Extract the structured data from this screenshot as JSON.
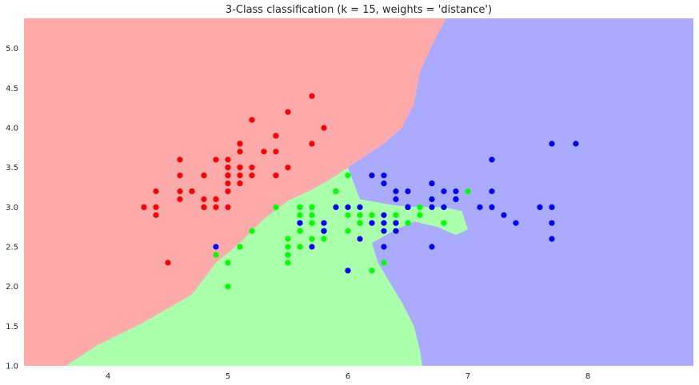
{
  "chart_data": {
    "type": "scatter",
    "title": "3-Class classification (k = 15, weights = 'distance')",
    "xlabel": "",
    "ylabel": "",
    "xlim": [
      3.3,
      8.88
    ],
    "ylim": [
      1.0,
      5.38
    ],
    "x_ticks": [
      "4",
      "5",
      "6",
      "7",
      "8"
    ],
    "y_ticks": [
      "1.0",
      "1.5",
      "2.0",
      "2.5",
      "3.0",
      "3.5",
      "4.0",
      "4.5",
      "5.0"
    ],
    "grid": false,
    "legend": "none",
    "region_colors": {
      "red": "#FFAAAA",
      "green": "#AAFFAA",
      "blue": "#AAAAFF"
    },
    "region_boundaries": {
      "red_green": [
        [
          3.65,
          1.0
        ],
        [
          3.9,
          1.25
        ],
        [
          4.3,
          1.55
        ],
        [
          4.7,
          1.9
        ],
        [
          4.9,
          2.3
        ],
        [
          5.1,
          2.55
        ],
        [
          5.3,
          2.85
        ],
        [
          5.5,
          3.08
        ],
        [
          5.7,
          3.22
        ],
        [
          5.85,
          3.35
        ],
        [
          6.0,
          3.5
        ]
      ],
      "red_blue": [
        [
          6.0,
          3.5
        ],
        [
          6.15,
          3.65
        ],
        [
          6.3,
          3.8
        ],
        [
          6.45,
          4.0
        ],
        [
          6.55,
          4.3
        ],
        [
          6.6,
          4.7
        ],
        [
          6.72,
          5.1
        ],
        [
          6.82,
          5.38
        ]
      ],
      "green_blue": [
        [
          6.0,
          3.5
        ],
        [
          6.05,
          3.3
        ],
        [
          6.1,
          3.1
        ],
        [
          6.4,
          3.02
        ],
        [
          6.6,
          3.0
        ],
        [
          6.8,
          3.0
        ],
        [
          6.95,
          2.95
        ],
        [
          7.0,
          2.72
        ],
        [
          6.9,
          2.65
        ],
        [
          6.75,
          2.75
        ],
        [
          6.55,
          2.82
        ],
        [
          6.4,
          2.72
        ],
        [
          6.2,
          2.55
        ],
        [
          6.25,
          2.3
        ],
        [
          6.35,
          2.05
        ],
        [
          6.45,
          1.8
        ],
        [
          6.55,
          1.5
        ],
        [
          6.6,
          1.2
        ],
        [
          6.62,
          1.0
        ]
      ]
    },
    "series": [
      {
        "color": "#FF0000",
        "points": [
          [
            5.1,
            3.5
          ],
          [
            4.9,
            3.0
          ],
          [
            4.7,
            3.2
          ],
          [
            4.6,
            3.1
          ],
          [
            5.0,
            3.6
          ],
          [
            5.4,
            3.9
          ],
          [
            4.6,
            3.4
          ],
          [
            5.0,
            3.4
          ],
          [
            4.4,
            2.9
          ],
          [
            4.9,
            3.1
          ],
          [
            5.4,
            3.7
          ],
          [
            4.8,
            3.4
          ],
          [
            4.8,
            3.0
          ],
          [
            4.3,
            3.0
          ],
          [
            5.8,
            4.0
          ],
          [
            5.7,
            4.4
          ],
          [
            5.4,
            3.9
          ],
          [
            5.1,
            3.5
          ],
          [
            5.7,
            3.8
          ],
          [
            5.1,
            3.8
          ],
          [
            5.4,
            3.4
          ],
          [
            5.1,
            3.7
          ],
          [
            4.6,
            3.6
          ],
          [
            5.1,
            3.3
          ],
          [
            4.8,
            3.4
          ],
          [
            5.0,
            3.0
          ],
          [
            5.0,
            3.4
          ],
          [
            5.2,
            3.5
          ],
          [
            5.2,
            3.4
          ],
          [
            4.7,
            3.2
          ],
          [
            4.8,
            3.1
          ],
          [
            5.4,
            3.4
          ],
          [
            5.2,
            4.1
          ],
          [
            5.5,
            4.2
          ],
          [
            4.9,
            3.1
          ],
          [
            5.0,
            3.2
          ],
          [
            5.5,
            3.5
          ],
          [
            4.9,
            3.6
          ],
          [
            4.4,
            3.0
          ],
          [
            5.1,
            3.4
          ],
          [
            5.0,
            3.5
          ],
          [
            4.5,
            2.3
          ],
          [
            4.4,
            3.2
          ],
          [
            5.0,
            3.5
          ],
          [
            5.1,
            3.8
          ],
          [
            4.8,
            3.0
          ],
          [
            5.1,
            3.8
          ],
          [
            4.6,
            3.2
          ],
          [
            5.3,
            3.7
          ],
          [
            5.0,
            3.3
          ]
        ]
      },
      {
        "color": "#00FF00",
        "points": [
          [
            7.0,
            3.2
          ],
          [
            6.4,
            3.2
          ],
          [
            6.9,
            3.1
          ],
          [
            5.5,
            2.3
          ],
          [
            6.5,
            2.8
          ],
          [
            5.7,
            2.8
          ],
          [
            6.3,
            3.3
          ],
          [
            4.9,
            2.4
          ],
          [
            6.6,
            2.9
          ],
          [
            5.2,
            2.7
          ],
          [
            5.0,
            2.0
          ],
          [
            5.9,
            3.0
          ],
          [
            6.0,
            2.2
          ],
          [
            6.1,
            2.9
          ],
          [
            5.6,
            2.9
          ],
          [
            6.7,
            3.1
          ],
          [
            5.6,
            3.0
          ],
          [
            5.8,
            2.7
          ],
          [
            6.2,
            2.2
          ],
          [
            5.6,
            2.5
          ],
          [
            5.9,
            3.2
          ],
          [
            6.1,
            2.8
          ],
          [
            6.3,
            2.5
          ],
          [
            6.1,
            2.8
          ],
          [
            6.4,
            2.9
          ],
          [
            6.6,
            3.0
          ],
          [
            6.8,
            2.8
          ],
          [
            6.7,
            3.0
          ],
          [
            6.0,
            2.9
          ],
          [
            5.7,
            2.6
          ],
          [
            5.5,
            2.4
          ],
          [
            5.5,
            2.4
          ],
          [
            5.8,
            2.7
          ],
          [
            6.0,
            2.7
          ],
          [
            5.4,
            3.0
          ],
          [
            6.0,
            3.4
          ],
          [
            6.7,
            3.1
          ],
          [
            6.3,
            2.3
          ],
          [
            5.6,
            3.0
          ],
          [
            5.5,
            2.5
          ],
          [
            5.5,
            2.6
          ],
          [
            6.1,
            3.0
          ],
          [
            5.8,
            2.6
          ],
          [
            5.0,
            2.3
          ],
          [
            5.6,
            2.7
          ],
          [
            5.7,
            3.0
          ],
          [
            5.7,
            2.9
          ],
          [
            6.2,
            2.9
          ],
          [
            5.1,
            2.5
          ],
          [
            5.7,
            2.8
          ]
        ]
      },
      {
        "color": "#0000FF",
        "points": [
          [
            6.3,
            3.3
          ],
          [
            5.8,
            2.7
          ],
          [
            7.1,
            3.0
          ],
          [
            6.3,
            2.9
          ],
          [
            6.5,
            3.0
          ],
          [
            7.6,
            3.0
          ],
          [
            4.9,
            2.5
          ],
          [
            7.3,
            2.9
          ],
          [
            6.7,
            2.5
          ],
          [
            7.2,
            3.6
          ],
          [
            6.5,
            3.2
          ],
          [
            6.4,
            2.7
          ],
          [
            6.8,
            3.0
          ],
          [
            5.7,
            2.5
          ],
          [
            5.8,
            2.8
          ],
          [
            6.4,
            3.2
          ],
          [
            6.5,
            3.0
          ],
          [
            7.7,
            3.8
          ],
          [
            7.7,
            2.6
          ],
          [
            6.0,
            2.2
          ],
          [
            6.9,
            3.2
          ],
          [
            5.6,
            2.8
          ],
          [
            7.7,
            2.8
          ],
          [
            6.3,
            2.7
          ],
          [
            6.7,
            3.3
          ],
          [
            7.2,
            3.2
          ],
          [
            6.2,
            2.8
          ],
          [
            6.1,
            3.0
          ],
          [
            6.4,
            2.8
          ],
          [
            7.2,
            3.0
          ],
          [
            7.4,
            2.8
          ],
          [
            7.9,
            3.8
          ],
          [
            6.4,
            2.8
          ],
          [
            6.3,
            2.8
          ],
          [
            6.1,
            2.6
          ],
          [
            7.7,
            3.0
          ],
          [
            6.3,
            3.4
          ],
          [
            6.4,
            3.1
          ],
          [
            6.0,
            3.0
          ],
          [
            6.9,
            3.1
          ],
          [
            6.7,
            3.1
          ],
          [
            6.9,
            3.1
          ],
          [
            5.8,
            2.7
          ],
          [
            6.8,
            3.2
          ],
          [
            6.7,
            3.3
          ],
          [
            6.7,
            3.0
          ],
          [
            6.3,
            2.5
          ],
          [
            6.5,
            3.0
          ],
          [
            6.2,
            3.4
          ],
          [
            5.9,
            3.0
          ]
        ]
      }
    ]
  }
}
